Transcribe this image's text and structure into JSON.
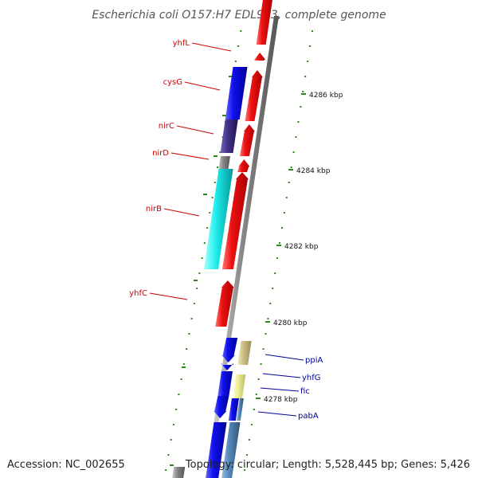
{
  "title": "Escherichia coli O157:H7 EDL933, complete genome",
  "accession_text": "Accession: NC_002655",
  "topology_text": "Topology: circular; Length: 5,528,445 bp; Genes: 5,426",
  "colors": {
    "forward_label": "#cc0000",
    "reverse_label": "#000099",
    "tick": "#2a8a1a",
    "backbone": "#888888",
    "red_gene": "#ee1111",
    "blue_gene": "#1111ee",
    "cyan_gene": "#11eeee",
    "navy_gene": "#443388",
    "khaki_gene": "#ccc088",
    "pale_yellow_gene": "#eeee99",
    "steel_blue_gene": "#5588bb",
    "gray_gene": "#888888"
  },
  "scale": {
    "unit": "kbp",
    "ticks": [
      {
        "label": "4286 kbp"
      },
      {
        "label": "4284 kbp"
      },
      {
        "label": "4282 kbp"
      },
      {
        "label": "4280 kbp"
      },
      {
        "label": "4278 kbp"
      }
    ]
  },
  "gene_labels": {
    "forward": [
      {
        "name": "yhfL"
      },
      {
        "name": "cysG"
      },
      {
        "name": "nirC"
      },
      {
        "name": "nirD"
      },
      {
        "name": "nirB"
      },
      {
        "name": "yhfC"
      }
    ],
    "reverse": [
      {
        "name": "ppiA"
      },
      {
        "name": "yhfG"
      },
      {
        "name": "fic"
      },
      {
        "name": "pabA"
      }
    ]
  }
}
